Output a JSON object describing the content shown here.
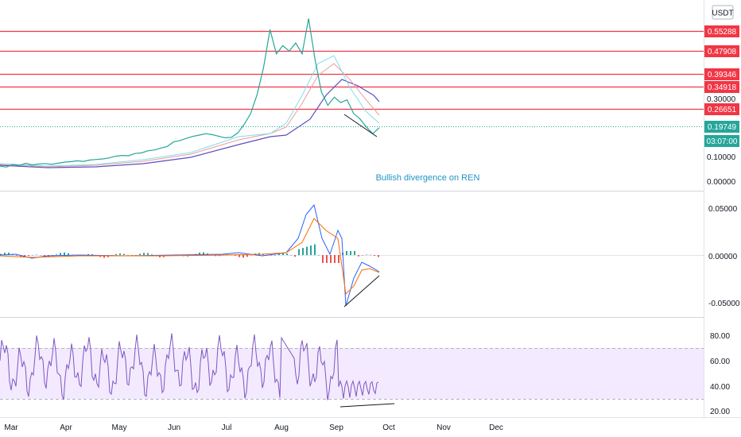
{
  "chart_data": {
    "type": "line",
    "title": "",
    "currency_label": "USDT",
    "annotation": "Bullish divergence on REN",
    "x_months": [
      "Mar",
      "Apr",
      "May",
      "Jun",
      "Jul",
      "Aug",
      "Sep",
      "Oct",
      "Nov",
      "Dec"
    ],
    "price_pane": {
      "y_ticks": [
        "0.30000",
        "0.10000",
        "0.00000"
      ],
      "resistance_levels": [
        "0.55288",
        "0.47908",
        "0.39346",
        "0.34918",
        "0.26651"
      ],
      "last_price": "0.19749",
      "countdown": "03:07:00",
      "price_series": [
        0.055,
        0.052,
        0.062,
        0.058,
        0.066,
        0.06,
        0.063,
        0.065,
        0.062,
        0.066,
        0.07,
        0.072,
        0.075,
        0.073,
        0.078,
        0.08,
        0.082,
        0.086,
        0.092,
        0.095,
        0.094,
        0.102,
        0.104,
        0.112,
        0.115,
        0.122,
        0.128,
        0.145,
        0.15,
        0.158,
        0.165,
        0.17,
        0.175,
        0.172,
        0.166,
        0.16,
        0.162,
        0.178,
        0.21,
        0.25,
        0.32,
        0.42,
        0.56,
        0.47,
        0.5,
        0.48,
        0.51,
        0.47,
        0.6,
        0.45,
        0.33,
        0.28,
        0.31,
        0.29,
        0.3,
        0.25,
        0.23,
        0.2,
        0.175,
        0.197
      ]
    },
    "macd_pane": {
      "y_ticks": [
        "0.05000",
        "0.00000",
        "-0.05000"
      ]
    },
    "rsi_pane": {
      "y_ticks": [
        "80.00",
        "60.00",
        "40.00",
        "20.00"
      ],
      "band": [
        30,
        70
      ]
    },
    "colors": {
      "resistance": "#f23645",
      "last_price": "#26a69a",
      "rsi": "#7e57c2",
      "rsi_band": "#f3eaff",
      "macd_line": "#2962ff",
      "signal_line": "#ff6d00",
      "hist_up": "#26a69a",
      "hist_down": "#ef5350"
    }
  }
}
